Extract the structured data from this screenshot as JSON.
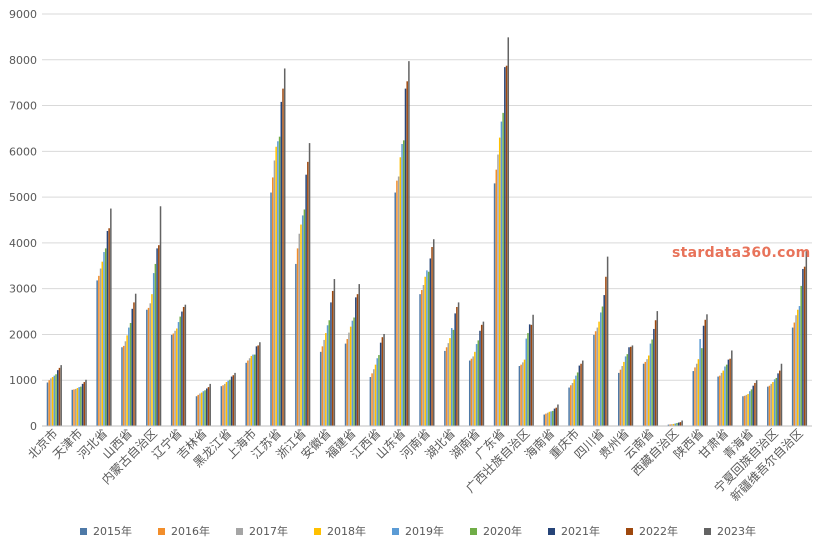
{
  "watermark": "stardata360.com",
  "chart_data": {
    "type": "bar",
    "title": "",
    "xlabel": "",
    "ylabel": "",
    "ylim": [
      0,
      9000
    ],
    "yticks": [
      0,
      1000,
      2000,
      3000,
      4000,
      5000,
      6000,
      7000,
      8000,
      9000
    ],
    "grid": true,
    "legend_position": "bottom",
    "categories": [
      "北京市",
      "天津市",
      "河北省",
      "山西省",
      "内蒙古自治区",
      "辽宁省",
      "吉林省",
      "黑龙江省",
      "上海市",
      "江苏省",
      "浙江省",
      "安徽省",
      "福建省",
      "江西省",
      "山东省",
      "河南省",
      "湖北省",
      "湖南省",
      "广东省",
      "广西壮族自治区",
      "海南省",
      "重庆市",
      "四川省",
      "贵州省",
      "云南省",
      "西藏自治区",
      "陕西省",
      "甘肃省",
      "青海省",
      "宁夏回族自治区",
      "新疆维吾尔自治区"
    ],
    "series": [
      {
        "name": "2015年",
        "color": "#4e79a7",
        "values": [
          950,
          790,
          3180,
          1720,
          2540,
          1990,
          650,
          870,
          1380,
          5100,
          3540,
          1620,
          1800,
          1070,
          5100,
          2880,
          1640,
          1430,
          5300,
          1310,
          250,
          840,
          1990,
          1160,
          1360,
          30,
          1200,
          1080,
          650,
          860,
          2150
        ]
      },
      {
        "name": "2016年",
        "color": "#f28e2b",
        "values": [
          1000,
          800,
          3280,
          1750,
          2580,
          2020,
          680,
          890,
          1430,
          5430,
          3880,
          1740,
          1900,
          1150,
          5360,
          2970,
          1720,
          1470,
          5600,
          1340,
          270,
          890,
          2070,
          1230,
          1400,
          35,
          1280,
          1100,
          660,
          880,
          2260
        ]
      },
      {
        "name": "2017年",
        "color": "#a5a5a5",
        "values": [
          1040,
          810,
          3440,
          1850,
          2680,
          2080,
          710,
          920,
          1480,
          5800,
          4200,
          1880,
          2040,
          1240,
          5450,
          3080,
          1810,
          1520,
          5930,
          1390,
          290,
          940,
          2150,
          1310,
          1460,
          40,
          1360,
          1160,
          680,
          920,
          2420
        ]
      },
      {
        "name": "2018年",
        "color": "#ffc000",
        "values": [
          1070,
          830,
          3590,
          1980,
          2880,
          2130,
          730,
          960,
          1530,
          6100,
          4400,
          2030,
          2170,
          1340,
          5870,
          3260,
          1920,
          1620,
          6300,
          1450,
          310,
          1020,
          2280,
          1400,
          1540,
          45,
          1460,
          1210,
          700,
          960,
          2540
        ]
      },
      {
        "name": "2019年",
        "color": "#5b9bd5",
        "values": [
          1100,
          850,
          3800,
          2150,
          3340,
          2270,
          760,
          990,
          1560,
          6220,
          4600,
          2200,
          2300,
          1480,
          6160,
          3400,
          2140,
          1790,
          6650,
          1910,
          320,
          1100,
          2480,
          1520,
          1800,
          55,
          1900,
          1300,
          760,
          1020,
          2620
        ]
      },
      {
        "name": "2020年",
        "color": "#70ad47",
        "values": [
          1130,
          860,
          3880,
          2250,
          3540,
          2390,
          780,
          1010,
          1560,
          6320,
          4730,
          2310,
          2370,
          1550,
          6240,
          3370,
          2100,
          1870,
          6840,
          2030,
          330,
          1170,
          2610,
          1570,
          1890,
          65,
          1700,
          1340,
          800,
          1050,
          3060
        ]
      },
      {
        "name": "2021年",
        "color": "#264478",
        "values": [
          1220,
          920,
          4260,
          2560,
          3880,
          2500,
          820,
          1080,
          1740,
          7080,
          5490,
          2700,
          2810,
          1820,
          7370,
          3660,
          2460,
          2080,
          7840,
          2220,
          380,
          1320,
          2860,
          1720,
          2120,
          75,
          2190,
          1450,
          880,
          1150,
          3430
        ]
      },
      {
        "name": "2022年",
        "color": "#9e480e",
        "values": [
          1270,
          960,
          4320,
          2700,
          3950,
          2600,
          850,
          1110,
          1760,
          7370,
          5770,
          2950,
          2880,
          1940,
          7530,
          3910,
          2600,
          2210,
          7870,
          2210,
          400,
          1360,
          3260,
          1730,
          2310,
          85,
          2320,
          1470,
          940,
          1210,
          3480
        ]
      },
      {
        "name": "2023年",
        "color": "#636363",
        "values": [
          1330,
          1010,
          4750,
          2890,
          4800,
          2650,
          920,
          1160,
          1830,
          7810,
          6180,
          3210,
          3100,
          2010,
          7970,
          4080,
          2700,
          2280,
          8490,
          2430,
          470,
          1430,
          3700,
          1760,
          2510,
          120,
          2440,
          1650,
          1000,
          1360,
          3820
        ]
      }
    ]
  }
}
